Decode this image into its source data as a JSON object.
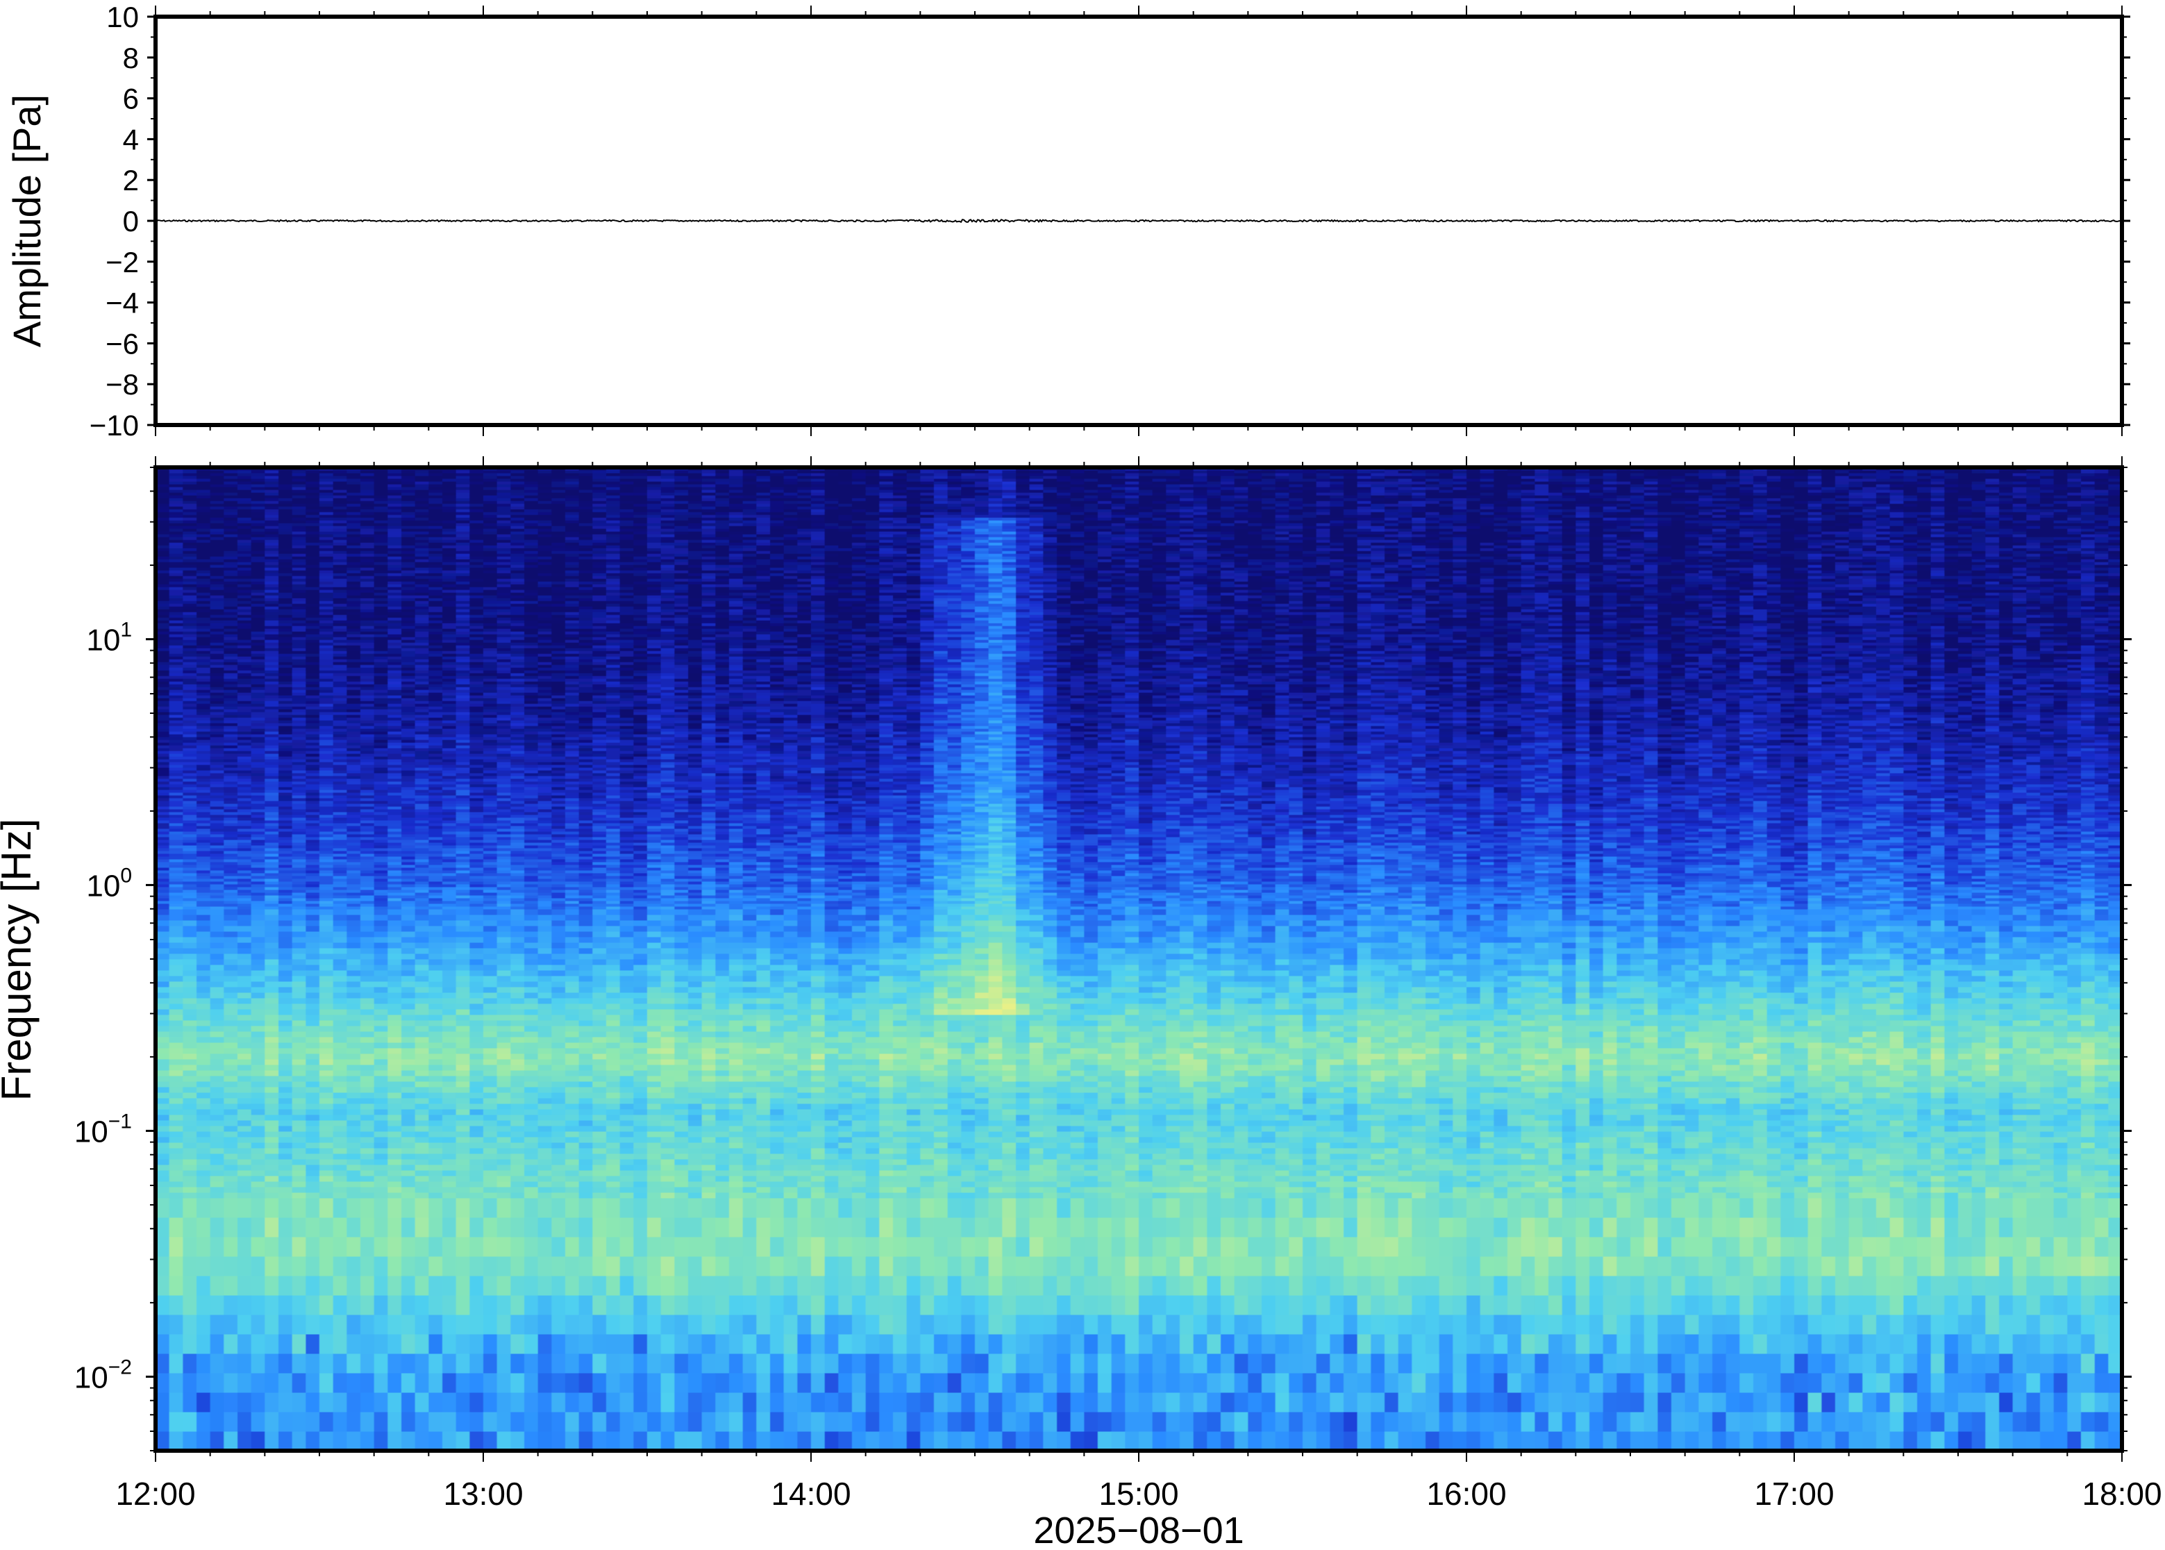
{
  "chart_data": [
    {
      "type": "line",
      "title": "",
      "xlabel": "",
      "ylabel": "Amplitude [Pa]",
      "ylim": [
        -10,
        10
      ],
      "y_ticks": [
        10,
        8,
        6,
        4,
        2,
        0,
        -2,
        -4,
        -6,
        -8,
        -10
      ],
      "y_tick_labels": [
        "10",
        "8",
        "6",
        "4",
        "2",
        "0",
        "−2",
        "−4",
        "−6",
        "−8",
        "−10"
      ],
      "x_tick_labels": [
        "12:00",
        "13:00",
        "14:00",
        "15:00",
        "16:00",
        "17:00",
        "18:00"
      ],
      "series": [
        {
          "x": [
            "2025-08-01T12:00",
            "2025-08-01T18:00"
          ],
          "values": [
            0,
            0
          ],
          "color": "#000000"
        }
      ],
      "grid": false
    },
    {
      "type": "heatmap",
      "title": "",
      "xlabel": "2025−08−01",
      "ylabel": "Frequency [Hz]",
      "xlim": [
        "2025-08-01T12:00",
        "2025-08-01T18:00"
      ],
      "ylim": [
        0.005,
        50
      ],
      "y_scale": "log",
      "x_tick_labels": [
        "12:00",
        "13:00",
        "14:00",
        "15:00",
        "16:00",
        "17:00",
        "18:00"
      ],
      "y_tick_labels": [
        {
          "base": "10",
          "exp": "−2",
          "value": 0.01
        },
        {
          "base": "10",
          "exp": "−1",
          "value": 0.1
        },
        {
          "base": "10",
          "exp": "0",
          "value": 1
        },
        {
          "base": "10",
          "exp": "1",
          "value": 10
        }
      ],
      "colormap": [
        "#0a0a6e",
        "#1a2fd0",
        "#2a8cff",
        "#4fd0f0",
        "#8ee8b0",
        "#e8f088"
      ],
      "approx_power_by_frequency": [
        {
          "freq_hz": 0.006,
          "level": 0.42
        },
        {
          "freq_hz": 0.01,
          "level": 0.45
        },
        {
          "freq_hz": 0.015,
          "level": 0.55
        },
        {
          "freq_hz": 0.03,
          "level": 0.78
        },
        {
          "freq_hz": 0.06,
          "level": 0.72
        },
        {
          "freq_hz": 0.12,
          "level": 0.62
        },
        {
          "freq_hz": 0.2,
          "level": 0.8
        },
        {
          "freq_hz": 0.35,
          "level": 0.62
        },
        {
          "freq_hz": 0.6,
          "level": 0.45
        },
        {
          "freq_hz": 1.0,
          "level": 0.32
        },
        {
          "freq_hz": 2.0,
          "level": 0.2
        },
        {
          "freq_hz": 4.0,
          "level": 0.12
        },
        {
          "freq_hz": 10.0,
          "level": 0.05
        },
        {
          "freq_hz": 50.0,
          "level": 0.02
        }
      ],
      "notable_events": [
        {
          "time": "2025-08-01T14:32",
          "description_level": 0.3
        }
      ],
      "grid": false
    }
  ]
}
